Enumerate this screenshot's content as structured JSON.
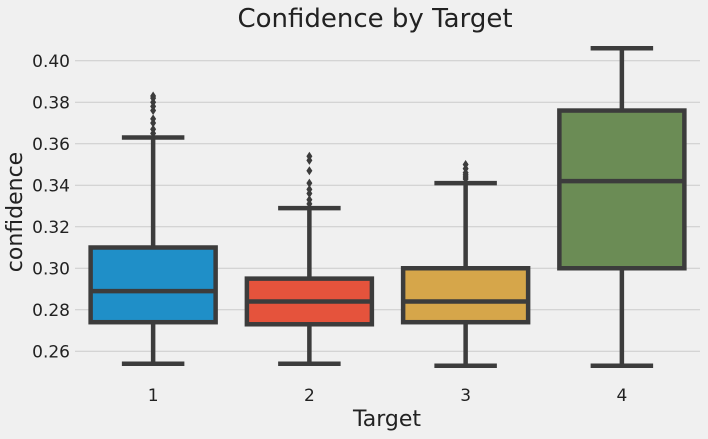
{
  "chart_data": {
    "type": "box",
    "title": "Confidence by Target",
    "xlabel": "Target",
    "ylabel": "confidence",
    "categories": [
      "1",
      "2",
      "3",
      "4"
    ],
    "ylim": [
      0.25,
      0.41
    ],
    "yticks": [
      0.26,
      0.28,
      0.3,
      0.32,
      0.34,
      0.36,
      0.38,
      0.4
    ],
    "ytick_labels": [
      "0.26",
      "0.28",
      "0.30",
      "0.32",
      "0.34",
      "0.36",
      "0.38",
      "0.40"
    ],
    "grid": "horizontal",
    "boxes": [
      {
        "category": "1",
        "color": "#1f8fc8",
        "whisker_low": 0.254,
        "q1": 0.274,
        "median": 0.289,
        "q3": 0.31,
        "whisker_high": 0.363,
        "outliers": [
          0.365,
          0.367,
          0.37,
          0.372,
          0.376,
          0.378,
          0.38,
          0.382,
          0.383
        ]
      },
      {
        "category": "2",
        "color": "#e5533c",
        "whisker_low": 0.254,
        "q1": 0.273,
        "median": 0.284,
        "q3": 0.295,
        "whisker_high": 0.329,
        "outliers": [
          0.331,
          0.333,
          0.336,
          0.338,
          0.341,
          0.347,
          0.352,
          0.354
        ]
      },
      {
        "category": "3",
        "color": "#d6a64a",
        "whisker_low": 0.253,
        "q1": 0.274,
        "median": 0.284,
        "q3": 0.3,
        "whisker_high": 0.341,
        "outliers": [
          0.343,
          0.344,
          0.345,
          0.346,
          0.348,
          0.35
        ]
      },
      {
        "category": "4",
        "color": "#6b8c55",
        "whisker_low": 0.253,
        "q1": 0.3,
        "median": 0.342,
        "q3": 0.376,
        "whisker_high": 0.406,
        "outliers": []
      }
    ]
  },
  "colors": {
    "background": "#f0f0f0",
    "grid": "#cbcbcb",
    "line": "#3c3c3c"
  }
}
